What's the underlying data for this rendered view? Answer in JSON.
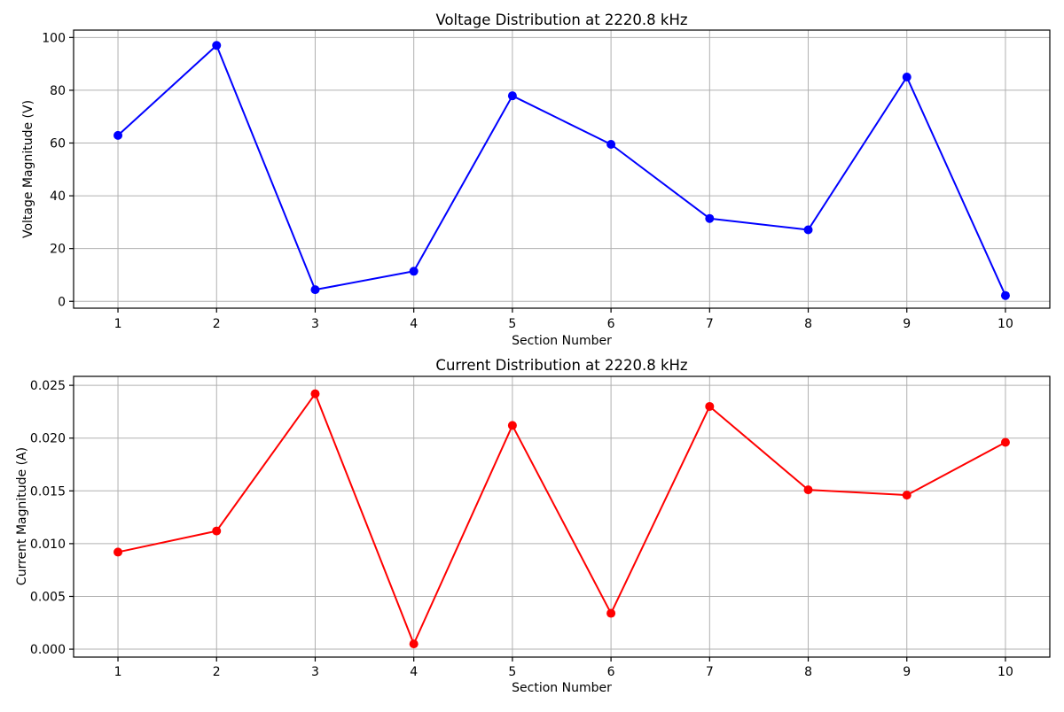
{
  "figure": {
    "background": "#ffffff",
    "grid_color": "#b0b0b0",
    "axis_color": "#000000"
  },
  "chart_data": [
    {
      "type": "line",
      "title": "Voltage Distribution at 2220.8 kHz",
      "xlabel": "Section Number",
      "ylabel": "Voltage Magnitude (V)",
      "categories": [
        1,
        2,
        3,
        4,
        5,
        6,
        7,
        8,
        9,
        10
      ],
      "xtick_labels": [
        "1",
        "2",
        "3",
        "4",
        "5",
        "6",
        "7",
        "8",
        "9",
        "10"
      ],
      "values": [
        62.9,
        97.0,
        4.4,
        11.4,
        77.9,
        59.5,
        31.4,
        27.1,
        85.0,
        2.2
      ],
      "line_color": "#0000ff",
      "marker": "circle",
      "grid": true,
      "legend": "none",
      "xlim": [
        0.55,
        10.45
      ],
      "ylim": [
        -2.6,
        102.8
      ],
      "yticks": [
        0,
        20,
        40,
        60,
        80,
        100
      ],
      "ytick_labels": [
        "0",
        "20",
        "40",
        "60",
        "80",
        "100"
      ]
    },
    {
      "type": "line",
      "title": "Current Distribution at 2220.8 kHz",
      "xlabel": "Section Number",
      "ylabel": "Current Magnitude (A)",
      "categories": [
        1,
        2,
        3,
        4,
        5,
        6,
        7,
        8,
        9,
        10
      ],
      "xtick_labels": [
        "1",
        "2",
        "3",
        "4",
        "5",
        "6",
        "7",
        "8",
        "9",
        "10"
      ],
      "values": [
        0.0092,
        0.0112,
        0.0242,
        0.0005,
        0.0212,
        0.0034,
        0.023,
        0.0151,
        0.0146,
        0.0196
      ],
      "line_color": "#ff0000",
      "marker": "circle",
      "grid": true,
      "legend": "none",
      "xlim": [
        0.55,
        10.45
      ],
      "ylim": [
        -0.00075,
        0.02585
      ],
      "yticks": [
        0,
        0.005,
        0.01,
        0.015,
        0.02,
        0.025
      ],
      "ytick_labels": [
        "0.000",
        "0.005",
        "0.010",
        "0.015",
        "0.020",
        "0.025"
      ]
    }
  ]
}
